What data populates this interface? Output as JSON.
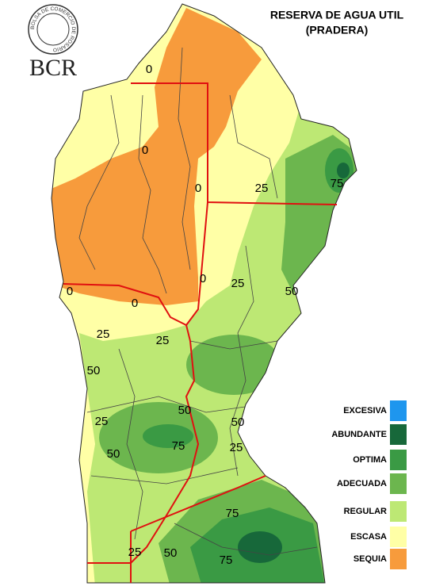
{
  "logo": {
    "ring_text": "BOLSA DE COMERCIO DE ROSARIO",
    "name": "BCR"
  },
  "title": [
    "RESERVA DE AGUA UTIL",
    "(PRADERA)"
  ],
  "legend": [
    {
      "label": "EXCESIVA",
      "color": "#1e96ee"
    },
    {
      "label": "ABUNDANTE",
      "color": "#17683a"
    },
    {
      "label": "OPTIMA",
      "color": "#3a9a44"
    },
    {
      "label": "ADECUADA",
      "color": "#6cb64e"
    },
    {
      "label": "REGULAR",
      "color": "#bde874"
    },
    {
      "label": "ESCASA",
      "color": "#ffffa6"
    },
    {
      "label": "SEQUIA",
      "color": "#f79b3c"
    }
  ],
  "contour_labels": [
    "0",
    "0",
    "0",
    "0",
    "0",
    "0",
    "25",
    "25",
    "25",
    "25",
    "50",
    "50",
    "75",
    "50",
    "25",
    "50",
    "50",
    "75",
    "25",
    "75",
    "25",
    "50",
    "75"
  ]
}
